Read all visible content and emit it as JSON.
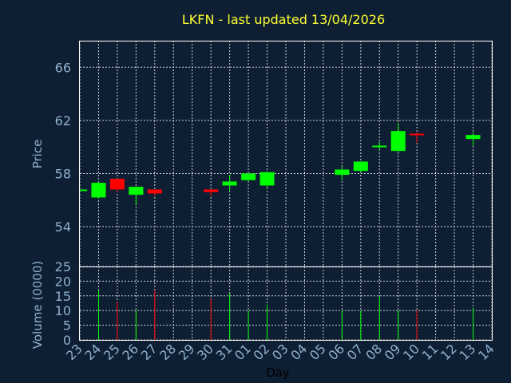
{
  "chart_data": {
    "type": "candlestick",
    "title": "LKFN - last updated 13/04/2026",
    "xlabel": "Day",
    "price_axis": {
      "label": "Price",
      "ylim": [
        51,
        68
      ],
      "ticks": [
        54,
        58,
        62,
        66
      ]
    },
    "volume_axis": {
      "label": "Volume (0000)",
      "ylim": [
        0,
        25
      ],
      "ticks": [
        0,
        5,
        10,
        15,
        20,
        25
      ]
    },
    "x_tick_labels": [
      "23",
      "24",
      "25",
      "26",
      "27",
      "28",
      "29",
      "30",
      "31",
      "01",
      "02",
      "03",
      "04",
      "05",
      "06",
      "07",
      "08",
      "09",
      "10",
      "11",
      "12",
      "13",
      "14"
    ],
    "grid": true,
    "up_color": "#00ff00",
    "down_color": "#ff0000",
    "candles": [
      {
        "day": "23",
        "open": 56.8,
        "high": 56.8,
        "low": 56.8,
        "close": 56.8,
        "volume": 0
      },
      {
        "day": "24",
        "open": 56.2,
        "high": 57.4,
        "low": 56.1,
        "close": 57.3,
        "volume": 17
      },
      {
        "day": "25",
        "open": 57.6,
        "high": 57.6,
        "low": 56.6,
        "close": 56.8,
        "volume": 13
      },
      {
        "day": "26",
        "open": 56.4,
        "high": 57.0,
        "low": 55.6,
        "close": 57.0,
        "volume": 10
      },
      {
        "day": "27",
        "open": 56.8,
        "high": 56.8,
        "low": 56.3,
        "close": 56.5,
        "volume": 17
      },
      {
        "day": "30",
        "open": 56.8,
        "high": 56.8,
        "low": 56.3,
        "close": 56.6,
        "volume": 14
      },
      {
        "day": "31",
        "open": 57.1,
        "high": 57.9,
        "low": 56.7,
        "close": 57.4,
        "volume": 16
      },
      {
        "day": "01",
        "open": 57.5,
        "high": 58.0,
        "low": 57.4,
        "close": 58.0,
        "volume": 10
      },
      {
        "day": "02",
        "open": 57.1,
        "high": 58.1,
        "low": 56.9,
        "close": 58.1,
        "volume": 12
      },
      {
        "day": "06",
        "open": 57.9,
        "high": 58.5,
        "low": 57.5,
        "close": 58.3,
        "volume": 10
      },
      {
        "day": "07",
        "open": 58.2,
        "high": 58.9,
        "low": 58.1,
        "close": 58.9,
        "volume": 10
      },
      {
        "day": "08",
        "open": 60.0,
        "high": 60.4,
        "low": 59.8,
        "close": 60.1,
        "volume": 15
      },
      {
        "day": "09",
        "open": 59.7,
        "high": 61.8,
        "low": 59.6,
        "close": 61.2,
        "volume": 10
      },
      {
        "day": "10",
        "open": 61.0,
        "high": 61.1,
        "low": 60.3,
        "close": 60.9,
        "volume": 10
      },
      {
        "day": "13",
        "open": 60.6,
        "high": 61.1,
        "low": 60.1,
        "close": 60.9,
        "volume": 11
      }
    ]
  }
}
